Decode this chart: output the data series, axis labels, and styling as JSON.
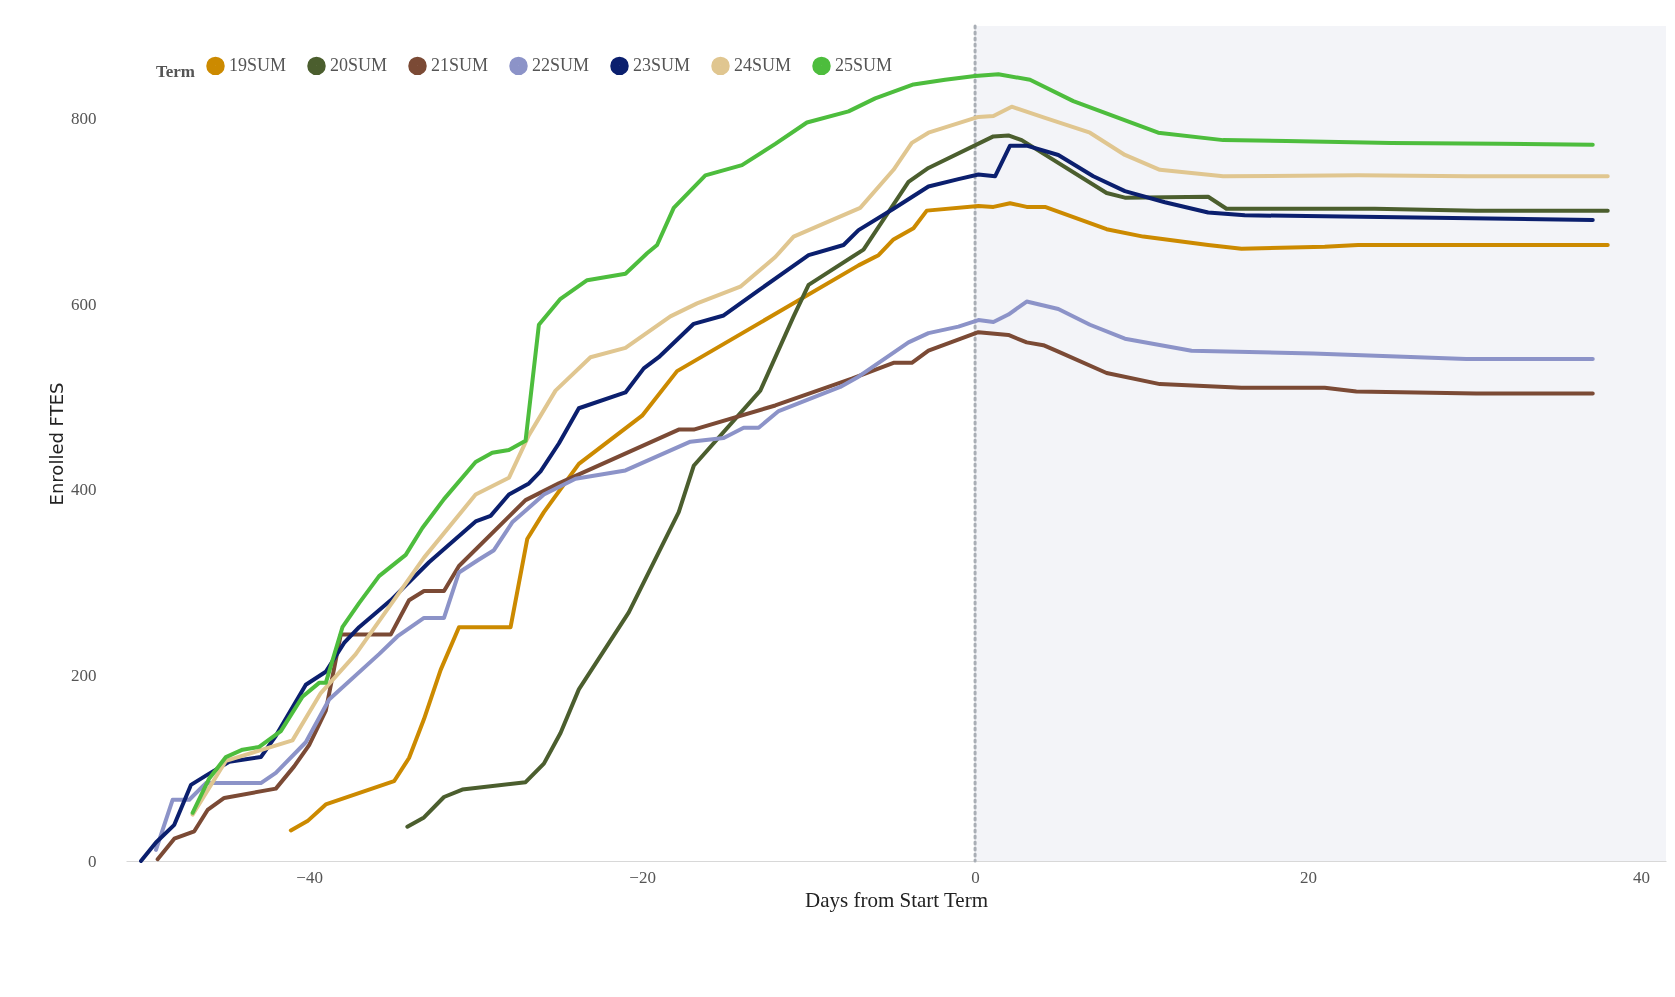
{
  "chart_data": {
    "type": "line",
    "xlabel": "Days from Start Term",
    "ylabel": "Enrolled FTES",
    "legend_title": "Term",
    "legend": "top left",
    "grid": false,
    "marker": "none",
    "line_style": "solid",
    "xlim": [
      -51,
      41.5
    ],
    "xticks": [
      -40,
      -20,
      0,
      20,
      40
    ],
    "ylim": [
      0,
      900
    ],
    "yticks": [
      0,
      200,
      400,
      600,
      800
    ],
    "bands": [
      {
        "axis": "x",
        "from": 0,
        "to": 41.5,
        "color": "#f3f4f8"
      }
    ],
    "ref_lines": [
      {
        "axis": "x",
        "value": 0,
        "color": "#a9aeb5",
        "line_style": "dotted"
      }
    ],
    "series": [
      {
        "name": "19SUM",
        "color": "#cc8a00",
        "x": [
          -41.1,
          -40.1,
          -39,
          -34.9,
          -34,
          -33.1,
          -32.1,
          -31,
          -27.9,
          -26.9,
          -25.9,
          -23.8,
          -20,
          -17.9,
          -7,
          -5.8,
          -4.9,
          -3.7,
          -2.9,
          0.2,
          1.1,
          2.1,
          3.1,
          4.2,
          7.9,
          10.1,
          14,
          16,
          21,
          23,
          38
        ],
        "values": [
          33,
          43,
          61,
          86,
          111,
          153,
          206,
          252,
          252,
          347,
          376,
          428,
          480,
          528,
          642,
          653,
          670,
          682,
          701,
          706,
          705,
          709,
          705,
          705,
          681,
          673,
          664,
          660,
          662,
          664,
          664
        ]
      },
      {
        "name": "20SUM",
        "color": "#4b5e2e",
        "x": [
          -34.1,
          -33.1,
          -31.9,
          -30.8,
          -27,
          -25.9,
          -24.9,
          -23.8,
          -20.8,
          -17.8,
          -16.9,
          -12.9,
          -10.9,
          -10,
          -6.7,
          -4,
          -2.8,
          1.1,
          2,
          2.8,
          7.9,
          9,
          14,
          15.1,
          24,
          30.1,
          38
        ],
        "values": [
          37,
          47,
          69,
          77,
          85,
          105,
          138,
          185,
          268,
          376,
          426,
          507,
          587,
          621,
          659,
          732,
          747,
          781,
          782,
          777,
          720,
          715,
          716,
          703,
          703,
          701,
          701
        ]
      },
      {
        "name": "21SUM",
        "color": "#7b4a35",
        "x": [
          -49.1,
          -48.1,
          -46.9,
          -46.1,
          -45.1,
          -42,
          -40.9,
          -40,
          -39,
          -38.1,
          -35.1,
          -34,
          -33.1,
          -31.9,
          -31,
          -27,
          -25,
          -17.8,
          -16.9,
          -12,
          -7.4,
          -4.9,
          -3.8,
          -2.8,
          0.2,
          2,
          3.1,
          4.1,
          5,
          7.9,
          11.1,
          16,
          21,
          22.9,
          30.1,
          37.1
        ],
        "values": [
          2,
          24,
          32,
          55,
          68,
          78,
          102,
          125,
          162,
          244,
          244,
          281,
          291,
          291,
          318,
          389,
          407,
          465,
          465,
          491,
          520,
          537,
          537,
          550,
          570,
          567,
          559,
          556,
          549,
          526,
          514,
          510,
          510,
          506,
          504,
          504
        ]
      },
      {
        "name": "22SUM",
        "color": "#8c93c8",
        "x": [
          -49.2,
          -48.2,
          -47.2,
          -46.2,
          -42.9,
          -42,
          -40.2,
          -38.8,
          -35.8,
          -34.7,
          -33.1,
          -31.9,
          -31,
          -29.8,
          -28.9,
          -27.8,
          -25.9,
          -24,
          -21,
          -17.1,
          -15.1,
          -13.9,
          -13,
          -11.8,
          -8.1,
          -7,
          -4,
          -2.8,
          -1,
          0.2,
          1.1,
          2,
          3.1,
          5,
          6.9,
          9,
          13,
          20.3,
          29.5,
          37.1
        ],
        "values": [
          12,
          66,
          66,
          84,
          84,
          95,
          128,
          174,
          223,
          242,
          262,
          262,
          311,
          325,
          335,
          365,
          395,
          412,
          421,
          452,
          456,
          467,
          467,
          485,
          511,
          522,
          559,
          569,
          576,
          583,
          581,
          589,
          603,
          595,
          578,
          563,
          550,
          547,
          541,
          541
        ]
      },
      {
        "name": "23SUM",
        "color": "#0b1f6e",
        "x": [
          -50.1,
          -49.2,
          -48.1,
          -47.1,
          -46.2,
          -44.8,
          -42.9,
          -42,
          -40.2,
          -39,
          -37.9,
          -37,
          -35.1,
          -32.8,
          -30,
          -29.1,
          -28,
          -26.8,
          -26.1,
          -25,
          -23.8,
          -21,
          -19.9,
          -19,
          -16.9,
          -15.1,
          -13,
          -10,
          -7.9,
          -7,
          -4.9,
          -2.8,
          -1,
          0.2,
          1.2,
          2.1,
          3.1,
          5,
          7.1,
          9,
          11.4,
          14,
          16.2,
          37.1
        ],
        "values": [
          0,
          20,
          39,
          82,
          92,
          107,
          112,
          135,
          190,
          204,
          235,
          252,
          281,
          322,
          366,
          372,
          395,
          407,
          420,
          450,
          488,
          505,
          531,
          543,
          579,
          588,
          615,
          653,
          664,
          680,
          703,
          727,
          735,
          740,
          738,
          771,
          771,
          761,
          738,
          722,
          710,
          699,
          696,
          691
        ]
      },
      {
        "name": "24SUM",
        "color": "#e0c690",
        "x": [
          -47,
          -45,
          -43,
          -41,
          -39.3,
          -37.2,
          -33.1,
          -30,
          -28,
          -26.8,
          -25.2,
          -23.1,
          -21,
          -18.3,
          -16.7,
          -14.1,
          -12,
          -10.9,
          -6.9,
          -4.9,
          -3.8,
          -2.8,
          0.2,
          1.1,
          2.2,
          4.2,
          6.9,
          9,
          11.1,
          14.9,
          23,
          29.6,
          38
        ],
        "values": [
          50,
          108,
          119,
          130,
          181,
          223,
          327,
          395,
          413,
          459,
          507,
          543,
          553,
          587,
          601,
          619,
          651,
          673,
          704,
          745,
          774,
          785,
          802,
          803,
          813,
          801,
          785,
          761,
          745,
          738,
          739,
          738,
          738
        ]
      },
      {
        "name": "25SUM",
        "color": "#4dbd3d",
        "x": [
          -47,
          -46,
          -45,
          -44,
          -43,
          -41.7,
          -40.4,
          -39.4,
          -39,
          -38,
          -37,
          -35.8,
          -34.2,
          -33.2,
          -31.9,
          -30,
          -29,
          -28,
          -27,
          -26.2,
          -24.9,
          -23.3,
          -21,
          -19.7,
          -19.1,
          -18.1,
          -16.2,
          -14,
          -12,
          -10.1,
          -7.6,
          -6,
          -3.7,
          -1.8,
          0,
          1.4,
          3.3,
          5.9,
          11,
          14.9,
          18.7,
          25,
          31.5,
          37.1
        ],
        "values": [
          52,
          89,
          112,
          120,
          123,
          140,
          177,
          192,
          192,
          252,
          278,
          307,
          330,
          359,
          390,
          430,
          440,
          443,
          453,
          578,
          606,
          626,
          633,
          655,
          664,
          704,
          739,
          750,
          773,
          796,
          808,
          822,
          837,
          842,
          846,
          848,
          842,
          819,
          785,
          777,
          776,
          774,
          773,
          772
        ]
      }
    ]
  }
}
